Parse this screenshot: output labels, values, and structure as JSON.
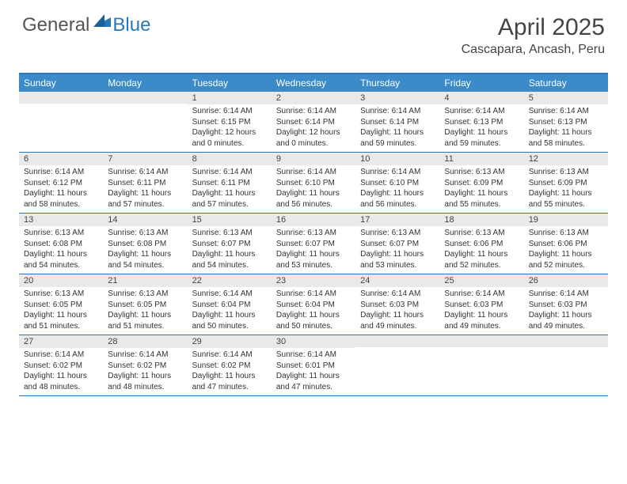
{
  "brand": {
    "part1": "General",
    "part2": "Blue"
  },
  "title": "April 2025",
  "location": "Cascapara, Ancash, Peru",
  "colors": {
    "header_bg": "#3b8bc9",
    "border": "#2976bb",
    "daynum_bg": "#e9e9e9",
    "text": "#333333",
    "title_text": "#444444"
  },
  "day_names": [
    "Sunday",
    "Monday",
    "Tuesday",
    "Wednesday",
    "Thursday",
    "Friday",
    "Saturday"
  ],
  "weeks": [
    [
      {
        "n": "",
        "sr": "",
        "ss": "",
        "dl": ""
      },
      {
        "n": "",
        "sr": "",
        "ss": "",
        "dl": ""
      },
      {
        "n": "1",
        "sr": "Sunrise: 6:14 AM",
        "ss": "Sunset: 6:15 PM",
        "dl": "Daylight: 12 hours and 0 minutes."
      },
      {
        "n": "2",
        "sr": "Sunrise: 6:14 AM",
        "ss": "Sunset: 6:14 PM",
        "dl": "Daylight: 12 hours and 0 minutes."
      },
      {
        "n": "3",
        "sr": "Sunrise: 6:14 AM",
        "ss": "Sunset: 6:14 PM",
        "dl": "Daylight: 11 hours and 59 minutes."
      },
      {
        "n": "4",
        "sr": "Sunrise: 6:14 AM",
        "ss": "Sunset: 6:13 PM",
        "dl": "Daylight: 11 hours and 59 minutes."
      },
      {
        "n": "5",
        "sr": "Sunrise: 6:14 AM",
        "ss": "Sunset: 6:13 PM",
        "dl": "Daylight: 11 hours and 58 minutes."
      }
    ],
    [
      {
        "n": "6",
        "sr": "Sunrise: 6:14 AM",
        "ss": "Sunset: 6:12 PM",
        "dl": "Daylight: 11 hours and 58 minutes."
      },
      {
        "n": "7",
        "sr": "Sunrise: 6:14 AM",
        "ss": "Sunset: 6:11 PM",
        "dl": "Daylight: 11 hours and 57 minutes."
      },
      {
        "n": "8",
        "sr": "Sunrise: 6:14 AM",
        "ss": "Sunset: 6:11 PM",
        "dl": "Daylight: 11 hours and 57 minutes."
      },
      {
        "n": "9",
        "sr": "Sunrise: 6:14 AM",
        "ss": "Sunset: 6:10 PM",
        "dl": "Daylight: 11 hours and 56 minutes."
      },
      {
        "n": "10",
        "sr": "Sunrise: 6:14 AM",
        "ss": "Sunset: 6:10 PM",
        "dl": "Daylight: 11 hours and 56 minutes."
      },
      {
        "n": "11",
        "sr": "Sunrise: 6:13 AM",
        "ss": "Sunset: 6:09 PM",
        "dl": "Daylight: 11 hours and 55 minutes."
      },
      {
        "n": "12",
        "sr": "Sunrise: 6:13 AM",
        "ss": "Sunset: 6:09 PM",
        "dl": "Daylight: 11 hours and 55 minutes."
      }
    ],
    [
      {
        "n": "13",
        "sr": "Sunrise: 6:13 AM",
        "ss": "Sunset: 6:08 PM",
        "dl": "Daylight: 11 hours and 54 minutes."
      },
      {
        "n": "14",
        "sr": "Sunrise: 6:13 AM",
        "ss": "Sunset: 6:08 PM",
        "dl": "Daylight: 11 hours and 54 minutes."
      },
      {
        "n": "15",
        "sr": "Sunrise: 6:13 AM",
        "ss": "Sunset: 6:07 PM",
        "dl": "Daylight: 11 hours and 54 minutes."
      },
      {
        "n": "16",
        "sr": "Sunrise: 6:13 AM",
        "ss": "Sunset: 6:07 PM",
        "dl": "Daylight: 11 hours and 53 minutes."
      },
      {
        "n": "17",
        "sr": "Sunrise: 6:13 AM",
        "ss": "Sunset: 6:07 PM",
        "dl": "Daylight: 11 hours and 53 minutes."
      },
      {
        "n": "18",
        "sr": "Sunrise: 6:13 AM",
        "ss": "Sunset: 6:06 PM",
        "dl": "Daylight: 11 hours and 52 minutes."
      },
      {
        "n": "19",
        "sr": "Sunrise: 6:13 AM",
        "ss": "Sunset: 6:06 PM",
        "dl": "Daylight: 11 hours and 52 minutes."
      }
    ],
    [
      {
        "n": "20",
        "sr": "Sunrise: 6:13 AM",
        "ss": "Sunset: 6:05 PM",
        "dl": "Daylight: 11 hours and 51 minutes."
      },
      {
        "n": "21",
        "sr": "Sunrise: 6:13 AM",
        "ss": "Sunset: 6:05 PM",
        "dl": "Daylight: 11 hours and 51 minutes."
      },
      {
        "n": "22",
        "sr": "Sunrise: 6:14 AM",
        "ss": "Sunset: 6:04 PM",
        "dl": "Daylight: 11 hours and 50 minutes."
      },
      {
        "n": "23",
        "sr": "Sunrise: 6:14 AM",
        "ss": "Sunset: 6:04 PM",
        "dl": "Daylight: 11 hours and 50 minutes."
      },
      {
        "n": "24",
        "sr": "Sunrise: 6:14 AM",
        "ss": "Sunset: 6:03 PM",
        "dl": "Daylight: 11 hours and 49 minutes."
      },
      {
        "n": "25",
        "sr": "Sunrise: 6:14 AM",
        "ss": "Sunset: 6:03 PM",
        "dl": "Daylight: 11 hours and 49 minutes."
      },
      {
        "n": "26",
        "sr": "Sunrise: 6:14 AM",
        "ss": "Sunset: 6:03 PM",
        "dl": "Daylight: 11 hours and 49 minutes."
      }
    ],
    [
      {
        "n": "27",
        "sr": "Sunrise: 6:14 AM",
        "ss": "Sunset: 6:02 PM",
        "dl": "Daylight: 11 hours and 48 minutes."
      },
      {
        "n": "28",
        "sr": "Sunrise: 6:14 AM",
        "ss": "Sunset: 6:02 PM",
        "dl": "Daylight: 11 hours and 48 minutes."
      },
      {
        "n": "29",
        "sr": "Sunrise: 6:14 AM",
        "ss": "Sunset: 6:02 PM",
        "dl": "Daylight: 11 hours and 47 minutes."
      },
      {
        "n": "30",
        "sr": "Sunrise: 6:14 AM",
        "ss": "Sunset: 6:01 PM",
        "dl": "Daylight: 11 hours and 47 minutes."
      },
      {
        "n": "",
        "sr": "",
        "ss": "",
        "dl": ""
      },
      {
        "n": "",
        "sr": "",
        "ss": "",
        "dl": ""
      },
      {
        "n": "",
        "sr": "",
        "ss": "",
        "dl": ""
      }
    ]
  ]
}
